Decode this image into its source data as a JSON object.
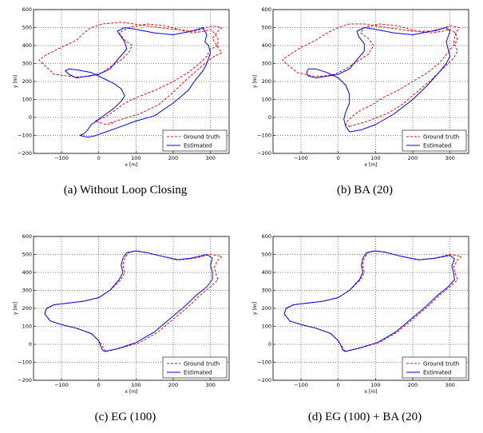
{
  "chart_data": [
    {
      "type": "line",
      "caption": "(a) Without Loop Closing",
      "xlabel": "x [m]",
      "ylabel": "y [m]",
      "xlim": [
        -175,
        350
      ],
      "ylim": [
        -200,
        600
      ],
      "xticks": [
        -100,
        0,
        100,
        200,
        300
      ],
      "yticks": [
        -200,
        -100,
        0,
        100,
        200,
        300,
        400,
        500,
        600
      ],
      "grid": true,
      "legend": "bottom-right",
      "series": [
        {
          "name": "Ground truth",
          "color": "#ff0000",
          "style": "dashed",
          "x": [
            30,
            110,
            160,
            200,
            240,
            285,
            310,
            330,
            320,
            305,
            320,
            330,
            305,
            260,
            200,
            130,
            60,
            10,
            -20,
            -40,
            -60,
            -100,
            -140,
            -160,
            -150,
            -120,
            -60,
            -20,
            10,
            30,
            60,
            80,
            90,
            70,
            55,
            80,
            130,
            180,
            230,
            250,
            285,
            300,
            310,
            320,
            320,
            300,
            290,
            270,
            240,
            200,
            150,
            100,
            70,
            50,
            30,
            15,
            0,
            -10,
            20,
            40
          ],
          "y": [
            -30,
            20,
            70,
            140,
            220,
            300,
            340,
            360,
            390,
            440,
            480,
            500,
            510,
            480,
            490,
            510,
            530,
            520,
            500,
            470,
            430,
            390,
            350,
            320,
            300,
            240,
            225,
            230,
            250,
            280,
            320,
            360,
            400,
            430,
            470,
            500,
            520,
            510,
            480,
            470,
            480,
            490,
            470,
            440,
            400,
            380,
            340,
            300,
            250,
            200,
            150,
            110,
            80,
            50,
            20,
            0,
            -10,
            -20,
            -40,
            -30
          ]
        },
        {
          "name": "Estimated",
          "color": "#0000ff",
          "style": "solid",
          "x": [
            -30,
            -15,
            20,
            60,
            100,
            150,
            200,
            240,
            260,
            280,
            290,
            300,
            295,
            285,
            290,
            280,
            250,
            200,
            150,
            100,
            70,
            50,
            60,
            70,
            75,
            50,
            30,
            0,
            -30,
            -60,
            -80,
            -90,
            -80,
            -60,
            -20,
            10,
            40,
            60,
            70,
            60,
            40,
            20,
            0,
            -20,
            -30,
            -40,
            -50,
            -30
          ],
          "y": [
            -110,
            -105,
            -80,
            -50,
            -20,
            10,
            80,
            150,
            210,
            260,
            300,
            360,
            400,
            420,
            460,
            500,
            480,
            460,
            470,
            490,
            500,
            480,
            450,
            420,
            380,
            320,
            270,
            240,
            230,
            220,
            240,
            260,
            270,
            265,
            250,
            220,
            190,
            160,
            120,
            90,
            50,
            20,
            -10,
            -40,
            -70,
            -90,
            -100,
            -110
          ]
        }
      ]
    },
    {
      "type": "line",
      "caption": "(b) BA (20)",
      "xlabel": "x [m]",
      "ylabel": "y [m]",
      "xlim": [
        -175,
        350
      ],
      "ylim": [
        -200,
        600
      ],
      "xticks": [
        -100,
        0,
        100,
        200,
        300
      ],
      "yticks": [
        -200,
        -100,
        0,
        100,
        200,
        300,
        400,
        500,
        600
      ],
      "grid": true,
      "legend": "bottom-right",
      "series": [
        {
          "name": "Ground truth",
          "color": "#ff0000",
          "style": "dashed",
          "x": [
            30,
            80,
            130,
            170,
            210,
            250,
            285,
            310,
            320,
            310,
            315,
            325,
            300,
            260,
            200,
            130,
            70,
            30,
            0,
            -30,
            -60,
            -100,
            -130,
            -150,
            -140,
            -110,
            -70,
            -40,
            -10,
            20,
            50,
            80,
            95,
            80,
            60,
            70,
            110,
            160,
            210,
            250,
            280,
            300,
            315,
            320,
            305,
            290,
            270,
            240,
            200,
            160,
            120,
            90,
            60,
            40,
            25,
            20,
            30
          ],
          "y": [
            -50,
            -20,
            20,
            70,
            140,
            210,
            280,
            330,
            370,
            420,
            470,
            500,
            510,
            480,
            480,
            500,
            520,
            520,
            500,
            470,
            430,
            390,
            350,
            320,
            300,
            250,
            230,
            230,
            240,
            270,
            310,
            350,
            400,
            440,
            470,
            500,
            520,
            510,
            480,
            470,
            480,
            490,
            470,
            430,
            390,
            350,
            300,
            250,
            200,
            150,
            110,
            70,
            40,
            10,
            -20,
            -40,
            -50
          ]
        },
        {
          "name": "Estimated",
          "color": "#0000ff",
          "style": "solid",
          "x": [
            30,
            60,
            100,
            150,
            200,
            240,
            270,
            290,
            300,
            295,
            290,
            300,
            290,
            250,
            200,
            150,
            100,
            70,
            50,
            55,
            70,
            70,
            50,
            30,
            0,
            -30,
            -60,
            -80,
            -85,
            -80,
            -60,
            -30,
            0,
            20,
            30,
            30,
            20,
            15,
            20,
            30
          ],
          "y": [
            -80,
            -70,
            -40,
            20,
            100,
            180,
            250,
            300,
            340,
            380,
            420,
            480,
            500,
            480,
            460,
            470,
            490,
            500,
            480,
            450,
            410,
            370,
            320,
            270,
            240,
            230,
            220,
            230,
            250,
            270,
            270,
            250,
            220,
            180,
            130,
            80,
            30,
            -10,
            -50,
            -80
          ]
        }
      ]
    },
    {
      "type": "line",
      "caption": "(c) EG (100)",
      "xlabel": "x [m]",
      "ylabel": "y [m]",
      "xlim": [
        -175,
        350
      ],
      "ylim": [
        -200,
        600
      ],
      "xticks": [
        -100,
        0,
        100,
        200,
        300
      ],
      "yticks": [
        -200,
        -100,
        0,
        100,
        200,
        300,
        400,
        500,
        600
      ],
      "grid": true,
      "legend": "bottom-right",
      "series": [
        {
          "name": "Ground truth",
          "color": "#ff0000",
          "style": "dashed",
          "x": [
            20,
            60,
            110,
            160,
            200,
            240,
            270,
            300,
            320,
            315,
            310,
            320,
            330,
            300,
            260,
            220,
            170,
            130,
            100,
            80,
            70,
            65,
            70,
            60,
            30,
            0,
            -40,
            -80,
            -120,
            -140,
            -145,
            -130,
            -100,
            -60,
            -20,
            0,
            10,
            15,
            20
          ],
          "y": [
            -40,
            -20,
            10,
            70,
            140,
            210,
            270,
            320,
            360,
            390,
            430,
            470,
            490,
            500,
            480,
            470,
            490,
            510,
            520,
            510,
            480,
            440,
            400,
            360,
            300,
            260,
            240,
            230,
            220,
            200,
            170,
            130,
            110,
            90,
            60,
            20,
            -10,
            -30,
            -40
          ]
        },
        {
          "name": "Estimated",
          "color": "#0000ff",
          "style": "solid",
          "x": [
            15,
            50,
            100,
            150,
            190,
            230,
            260,
            290,
            305,
            305,
            300,
            305,
            290,
            250,
            210,
            170,
            130,
            100,
            75,
            65,
            60,
            65,
            55,
            30,
            0,
            -40,
            -80,
            -120,
            -140,
            -145,
            -130,
            -100,
            -60,
            -20,
            0,
            5,
            10,
            15
          ],
          "y": [
            -40,
            -25,
            10,
            70,
            140,
            210,
            270,
            320,
            360,
            400,
            440,
            480,
            500,
            480,
            470,
            490,
            510,
            520,
            510,
            480,
            440,
            400,
            360,
            300,
            260,
            240,
            230,
            220,
            200,
            170,
            130,
            110,
            90,
            60,
            20,
            -10,
            -30,
            -40
          ]
        }
      ]
    },
    {
      "type": "line",
      "caption": "(d) EG (100) + BA (20)",
      "xlabel": "x [m]",
      "ylabel": "y [m]",
      "xlim": [
        -175,
        350
      ],
      "ylim": [
        -200,
        600
      ],
      "xticks": [
        -100,
        0,
        100,
        200,
        300
      ],
      "yticks": [
        -200,
        -100,
        0,
        100,
        200,
        300,
        400,
        500,
        600
      ],
      "grid": true,
      "legend": "bottom-right",
      "series": [
        {
          "name": "Ground truth",
          "color": "#ff0000",
          "style": "dashed",
          "x": [
            20,
            60,
            110,
            160,
            200,
            240,
            270,
            300,
            320,
            315,
            310,
            320,
            330,
            300,
            260,
            220,
            170,
            130,
            100,
            80,
            70,
            65,
            70,
            60,
            30,
            0,
            -40,
            -80,
            -120,
            -140,
            -145,
            -130,
            -100,
            -60,
            -20,
            0,
            10,
            15,
            20
          ],
          "y": [
            -40,
            -20,
            10,
            70,
            140,
            210,
            270,
            320,
            360,
            390,
            430,
            470,
            490,
            500,
            480,
            470,
            490,
            510,
            520,
            510,
            480,
            440,
            400,
            360,
            300,
            260,
            240,
            230,
            220,
            200,
            170,
            130,
            110,
            90,
            60,
            20,
            -10,
            -30,
            -40
          ]
        },
        {
          "name": "Estimated",
          "color": "#0000ff",
          "style": "solid",
          "x": [
            18,
            55,
            105,
            155,
            195,
            235,
            265,
            295,
            312,
            310,
            305,
            312,
            300,
            258,
            215,
            168,
            128,
            98,
            76,
            66,
            62,
            66,
            57,
            30,
            0,
            -40,
            -80,
            -120,
            -140,
            -145,
            -130,
            -100,
            -60,
            -20,
            0,
            8,
            12,
            18
          ],
          "y": [
            -40,
            -22,
            10,
            70,
            140,
            210,
            270,
            320,
            360,
            395,
            435,
            475,
            495,
            478,
            470,
            490,
            512,
            520,
            510,
            480,
            440,
            400,
            360,
            300,
            260,
            240,
            230,
            220,
            200,
            170,
            130,
            110,
            90,
            60,
            20,
            -10,
            -30,
            -40
          ]
        }
      ]
    }
  ]
}
